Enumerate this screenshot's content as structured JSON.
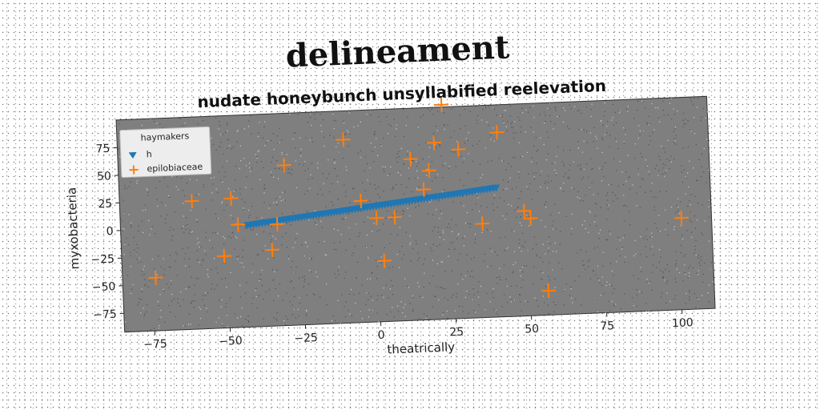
{
  "title": "delineament",
  "chart_data": {
    "type": "scatter",
    "title": "nudate honeybunch unsyllabified reelevation",
    "xlabel": "theatrically",
    "ylabel": "myxobacteria",
    "xlim": [
      -85,
      111
    ],
    "ylim": [
      -92,
      100
    ],
    "x_ticks": [
      -75,
      -50,
      -25,
      0,
      25,
      50,
      75,
      100
    ],
    "y_ticks": [
      -75,
      -50,
      -25,
      0,
      25,
      50,
      75
    ],
    "x_tick_labels": [
      "−75",
      "−50",
      "−25",
      "0",
      "25",
      "50",
      "75",
      "100"
    ],
    "y_tick_labels": [
      "−75",
      "−50",
      "−25",
      "0",
      "25",
      "50",
      "75"
    ],
    "grid": false,
    "legend": {
      "title": "haymakers",
      "position": "top-left"
    },
    "series": [
      {
        "name": "h",
        "marker": "triangle-down",
        "color": "#1f77b4",
        "x": [
          -43,
          -42,
          -41,
          -40,
          -39,
          -38,
          -37,
          -36,
          -35,
          -34,
          -33,
          -32,
          -31,
          -30,
          -29,
          -28,
          -27,
          -26,
          -25,
          -24,
          -23,
          -22,
          -21,
          -20,
          -19,
          -18,
          -17,
          -16,
          -15,
          -14,
          -13,
          -12,
          -11,
          -10,
          -9,
          -8,
          -7,
          -6,
          -5,
          -4,
          -3,
          -2,
          -1,
          0,
          1,
          2,
          3,
          4,
          5,
          6,
          7,
          8,
          9,
          10,
          11,
          12,
          13,
          14,
          15,
          16,
          17,
          18,
          19,
          20,
          21,
          22,
          23,
          24,
          25,
          26,
          27,
          28,
          29,
          30,
          31,
          32,
          33,
          34,
          35,
          36,
          37,
          38,
          39,
          40
        ],
        "y": [
          0,
          0.3,
          0.6,
          0.9,
          1.2,
          1.5,
          1.8,
          2.1,
          2.4,
          2.7,
          3,
          3.3,
          3.6,
          3.9,
          4.2,
          4.5,
          4.8,
          5.1,
          5.4,
          5.7,
          6,
          6.3,
          6.6,
          6.9,
          7.2,
          7.5,
          7.8,
          8.1,
          8.4,
          8.7,
          9,
          9.3,
          9.6,
          9.9,
          10.2,
          10.5,
          10.8,
          11.1,
          11.4,
          11.7,
          12,
          12.3,
          12.6,
          12.9,
          13.2,
          13.5,
          13.8,
          14.1,
          14.4,
          14.7,
          15,
          15.3,
          15.6,
          15.9,
          16.2,
          16.5,
          16.8,
          17.1,
          17.4,
          17.7,
          18,
          18.3,
          18.6,
          18.9,
          19.2,
          19.5,
          19.8,
          20.1,
          20.4,
          20.7,
          21,
          21.3,
          21.6,
          21.9,
          22.2,
          22.5,
          22.8,
          23.1,
          23.4,
          23.7,
          24,
          24.3,
          24.6,
          24.9
        ]
      },
      {
        "name": "epilobiaceae",
        "marker": "plus",
        "color": "#ff7f0e",
        "x": [
          -74,
          -61,
          -51,
          -48,
          -46,
          -35,
          -33,
          -30,
          -10,
          -5,
          0,
          2,
          6,
          12,
          16,
          18,
          20,
          23,
          28,
          35,
          41,
          49,
          51,
          56,
          101
        ],
        "y": [
          -44,
          24,
          -27,
          25,
          1,
          -23,
          0,
          53,
          74,
          18,
          2,
          -37,
          2,
          54,
          26,
          43,
          68,
          102,
          61,
          -7,
          75,
          3,
          -4,
          -70,
          -9
        ]
      }
    ]
  }
}
